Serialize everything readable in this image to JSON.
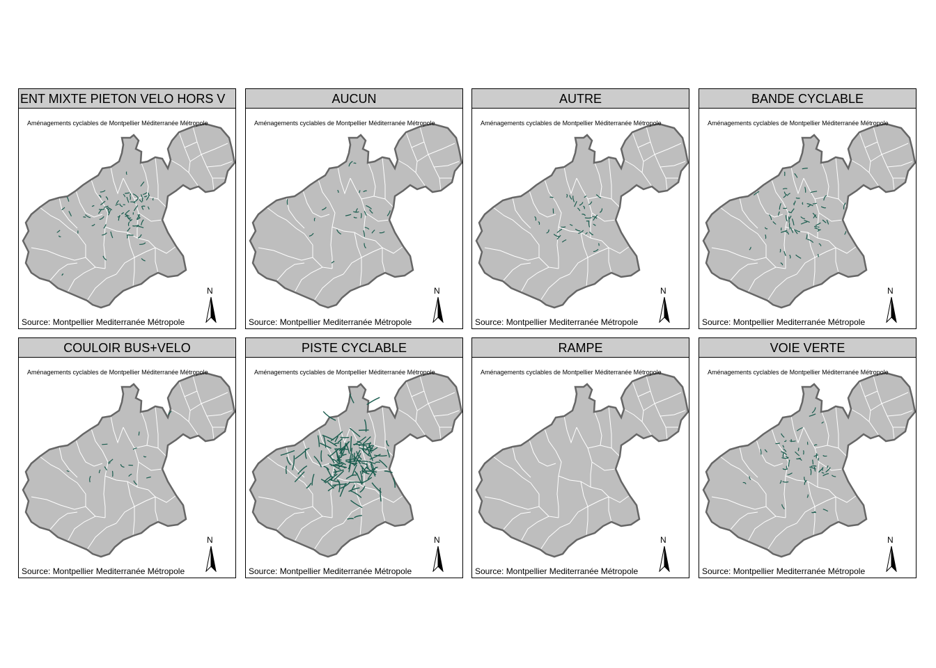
{
  "panels": [
    {
      "title": "ENT MIXTE PIETON VELO HORS V",
      "clipped": true
    },
    {
      "title": "AUCUN",
      "clipped": false
    },
    {
      "title": "AUTRE",
      "clipped": false
    },
    {
      "title": "BANDE CYCLABLE",
      "clipped": false
    },
    {
      "title": "COULOIR BUS+VELO",
      "clipped": false
    },
    {
      "title": "PISTE CYCLABLE",
      "clipped": false
    },
    {
      "title": "RAMPE",
      "clipped": false
    },
    {
      "title": "VOIE VERTE",
      "clipped": false
    }
  ],
  "caption": "Aménagements cyclables de Montpellier Méditerranée Métropole",
  "source": "Source: Montpellier Mediterranée Métropole",
  "north_label": "N",
  "colors": {
    "land": "#bebebe",
    "outline": "#666666",
    "borders": "#ffffff",
    "routes": "#1a5c4e",
    "strip": "#cccccc"
  },
  "route_density": [
    0.55,
    0.18,
    0.25,
    0.45,
    0.12,
    1.0,
    0.0,
    0.4
  ]
}
